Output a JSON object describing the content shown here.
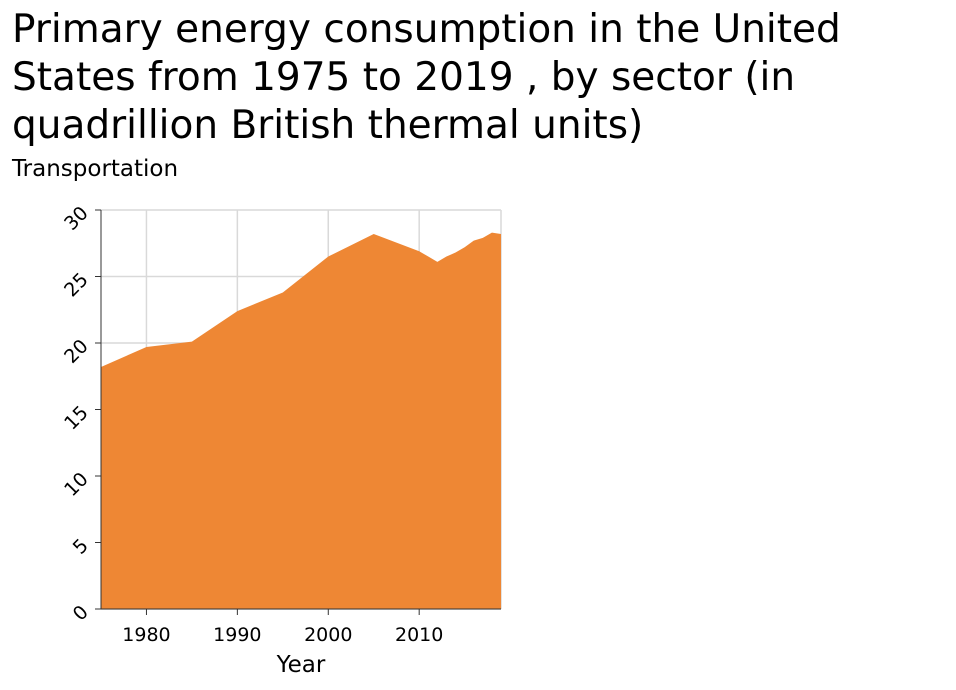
{
  "chart_data": {
    "type": "area",
    "title": "Primary energy consumption in the United States from 1975 to 2019 , by sector (in quadrillion British thermal units)",
    "subtitle": "Transportation",
    "xlabel": "Year",
    "ylabel": "",
    "xlim": [
      1975,
      2019
    ],
    "ylim": [
      0,
      30
    ],
    "x_ticks": [
      1980,
      1990,
      2000,
      2010
    ],
    "y_ticks": [
      0,
      5,
      10,
      15,
      20,
      25,
      30
    ],
    "grid": true,
    "fill_color": "#ee8734",
    "series": [
      {
        "x": [
          1975,
          1980,
          1985,
          1990,
          1995,
          2000,
          2005,
          2010,
          2011,
          2012,
          2013,
          2014,
          2015,
          2016,
          2017,
          2018,
          2019
        ],
        "values": [
          18.2,
          19.7,
          20.1,
          22.4,
          23.8,
          26.5,
          28.2,
          26.9,
          26.5,
          26.1,
          26.5,
          26.8,
          27.2,
          27.7,
          27.9,
          28.3,
          28.2
        ]
      }
    ]
  }
}
